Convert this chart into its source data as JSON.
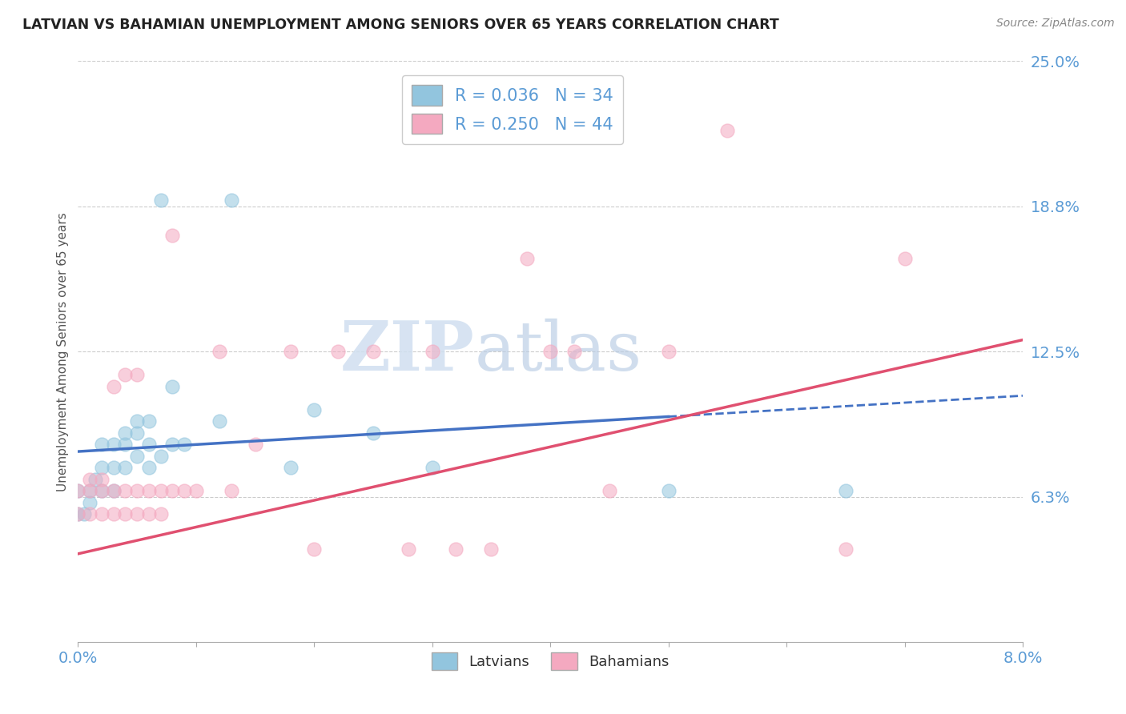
{
  "title": "LATVIAN VS BAHAMIAN UNEMPLOYMENT AMONG SENIORS OVER 65 YEARS CORRELATION CHART",
  "source": "Source: ZipAtlas.com",
  "ylabel": "Unemployment Among Seniors over 65 years",
  "xlim": [
    0.0,
    0.08
  ],
  "ylim": [
    0.0,
    0.25
  ],
  "yticks": [
    0.0,
    0.0625,
    0.125,
    0.1875,
    0.25
  ],
  "ytick_labels": [
    "",
    "6.3%",
    "12.5%",
    "18.8%",
    "25.0%"
  ],
  "xticks": [
    0.0,
    0.01,
    0.02,
    0.03,
    0.04,
    0.05,
    0.06,
    0.07,
    0.08
  ],
  "xtick_labels": [
    "0.0%",
    "",
    "",
    "",
    "",
    "",
    "",
    "",
    "8.0%"
  ],
  "latvian_color": "#92c5de",
  "bahamian_color": "#f4a9c0",
  "trend_latvian_color": "#4472c4",
  "trend_bahamian_color": "#e05070",
  "latvian_R": 0.036,
  "latvian_N": 34,
  "bahamian_R": 0.25,
  "bahamian_N": 44,
  "watermark_zip": "ZIP",
  "watermark_atlas": "atlas",
  "latvian_x": [
    0.0,
    0.0,
    0.0005,
    0.001,
    0.001,
    0.0015,
    0.002,
    0.002,
    0.002,
    0.003,
    0.003,
    0.003,
    0.004,
    0.004,
    0.004,
    0.005,
    0.005,
    0.005,
    0.006,
    0.006,
    0.006,
    0.007,
    0.007,
    0.008,
    0.008,
    0.009,
    0.012,
    0.013,
    0.018,
    0.02,
    0.025,
    0.03,
    0.05,
    0.065
  ],
  "latvian_y": [
    0.055,
    0.065,
    0.055,
    0.06,
    0.065,
    0.07,
    0.065,
    0.075,
    0.085,
    0.065,
    0.075,
    0.085,
    0.075,
    0.085,
    0.09,
    0.08,
    0.09,
    0.095,
    0.075,
    0.085,
    0.095,
    0.08,
    0.19,
    0.085,
    0.11,
    0.085,
    0.095,
    0.19,
    0.075,
    0.1,
    0.09,
    0.075,
    0.065,
    0.065
  ],
  "bahamian_x": [
    0.0,
    0.0,
    0.001,
    0.001,
    0.001,
    0.002,
    0.002,
    0.002,
    0.003,
    0.003,
    0.003,
    0.004,
    0.004,
    0.004,
    0.005,
    0.005,
    0.005,
    0.006,
    0.006,
    0.007,
    0.007,
    0.008,
    0.008,
    0.009,
    0.01,
    0.012,
    0.013,
    0.015,
    0.018,
    0.02,
    0.022,
    0.025,
    0.028,
    0.03,
    0.032,
    0.035,
    0.038,
    0.04,
    0.042,
    0.045,
    0.05,
    0.055,
    0.065,
    0.07
  ],
  "bahamian_y": [
    0.055,
    0.065,
    0.055,
    0.065,
    0.07,
    0.055,
    0.065,
    0.07,
    0.055,
    0.065,
    0.11,
    0.055,
    0.065,
    0.115,
    0.055,
    0.065,
    0.115,
    0.055,
    0.065,
    0.055,
    0.065,
    0.065,
    0.175,
    0.065,
    0.065,
    0.125,
    0.065,
    0.085,
    0.125,
    0.04,
    0.125,
    0.125,
    0.04,
    0.125,
    0.04,
    0.04,
    0.165,
    0.125,
    0.125,
    0.065,
    0.125,
    0.22,
    0.04,
    0.165
  ],
  "trend_latvian_intercept": 0.082,
  "trend_latvian_slope": 0.3,
  "trend_bahamian_intercept": 0.038,
  "trend_bahamian_slope": 1.15
}
